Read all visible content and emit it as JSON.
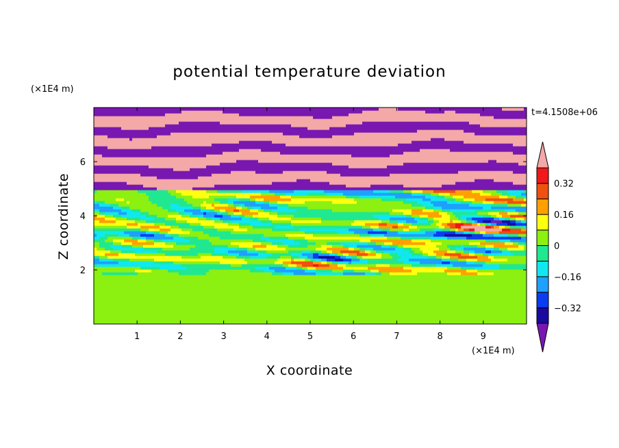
{
  "chart_data": {
    "type": "heatmap",
    "title": "potential temperature deviation",
    "xlabel": "X coordinate",
    "ylabel": "Z coordinate",
    "x_unit": "(×1E4 m)",
    "y_unit": "(×1E4 m)",
    "timestamp": "t=4.1508e+06",
    "xlim": [
      0,
      10
    ],
    "ylim": [
      0,
      8
    ],
    "x_ticks": [
      1,
      2,
      3,
      4,
      5,
      6,
      7,
      8,
      9
    ],
    "y_ticks": [
      2,
      4,
      6
    ],
    "colorbar": {
      "levels": [
        -0.4,
        -0.32,
        -0.24,
        -0.16,
        -0.08,
        0,
        0.08,
        0.16,
        0.24,
        0.32,
        0.4
      ],
      "colors": [
        "#1a0aa0",
        "#0a3cf0",
        "#1ea0ff",
        "#10e8f0",
        "#20e890",
        "#8cf010",
        "#ffff10",
        "#ffa000",
        "#f05010",
        "#f01818"
      ],
      "under_color": "#7818b0",
      "over_color": "#f4a8a8",
      "tick_values": [
        -0.32,
        -0.16,
        0,
        0.16,
        0.32
      ],
      "tick_labels": [
        "−0.32",
        "−0.16",
        "0",
        "0.16",
        "0.32"
      ],
      "extend": "both"
    },
    "regions": [
      {
        "z": [
          0,
          1.9
        ],
        "description": "green band, values near 0 to 0.08"
      },
      {
        "z": [
          1.9,
          5.0
        ],
        "description": "turbulent mixed layer, values -0.4 to 0.4"
      },
      {
        "z": [
          5.0,
          8.0
        ],
        "description": "layered stripes alternating above 0.4 and below -0.4"
      }
    ]
  }
}
